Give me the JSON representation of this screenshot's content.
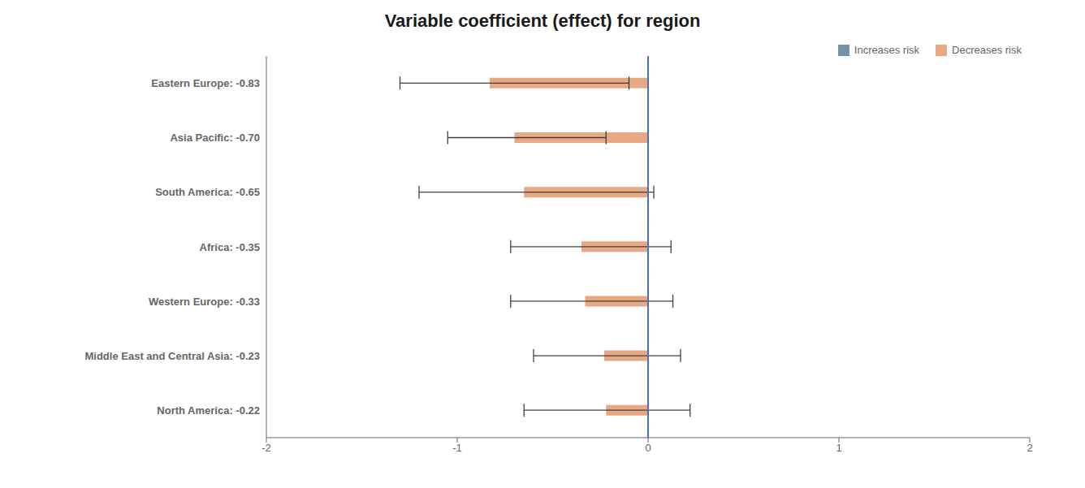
{
  "chart_data": {
    "type": "bar",
    "orientation": "horizontal",
    "title": "Variable coefficient (effect) for region",
    "categories": [
      "Eastern Europe: -0.83",
      "Asia Pacific: -0.70",
      "South America: -0.65",
      "Africa: -0.35",
      "Western Europe: -0.33",
      "Middle East and Central Asia: -0.23",
      "North America: -0.22"
    ],
    "series": [
      {
        "name": "Increases risk",
        "color": "#7393A7",
        "values": [
          null,
          null,
          null,
          null,
          null,
          null,
          null
        ]
      },
      {
        "name": "Decreases risk",
        "color": "#E8A882",
        "values": [
          -0.83,
          -0.7,
          -0.65,
          -0.35,
          -0.33,
          -0.23,
          -0.22
        ],
        "ci_low": [
          -1.3,
          -1.05,
          -1.2,
          -0.72,
          -0.72,
          -0.6,
          -0.65
        ],
        "ci_high": [
          -0.1,
          -0.22,
          0.03,
          0.12,
          0.13,
          0.17,
          0.22
        ]
      }
    ],
    "xlim": [
      -2,
      2
    ],
    "xticks": [
      -2,
      -1,
      0,
      1,
      2
    ],
    "vline": {
      "x": 0,
      "color": "#4472C4"
    },
    "grid": false,
    "legend": "upper right"
  }
}
